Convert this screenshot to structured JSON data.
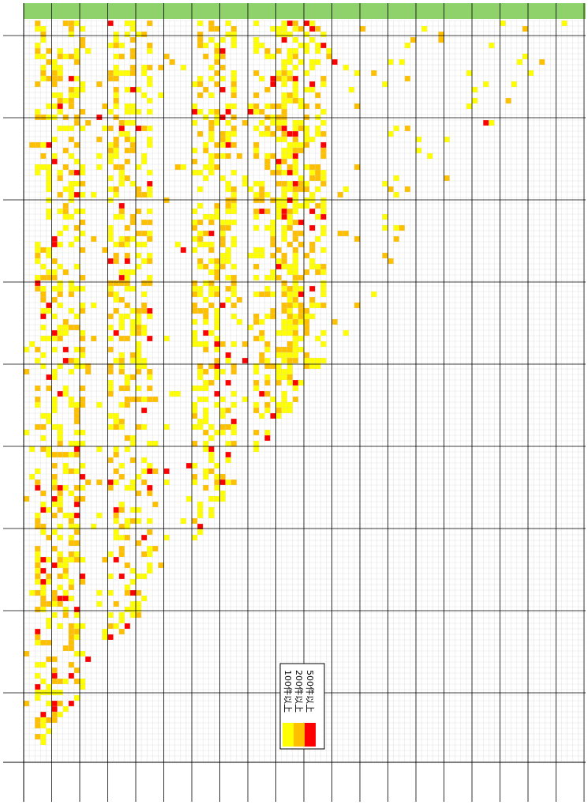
{
  "legend": {
    "items": [
      {
        "label": "100件以上",
        "color": "#ffff00"
      },
      {
        "label": "200件以上",
        "color": "#ffc000"
      },
      {
        "label": "500件以上",
        "color": "#ff0000"
      }
    ]
  }
}
